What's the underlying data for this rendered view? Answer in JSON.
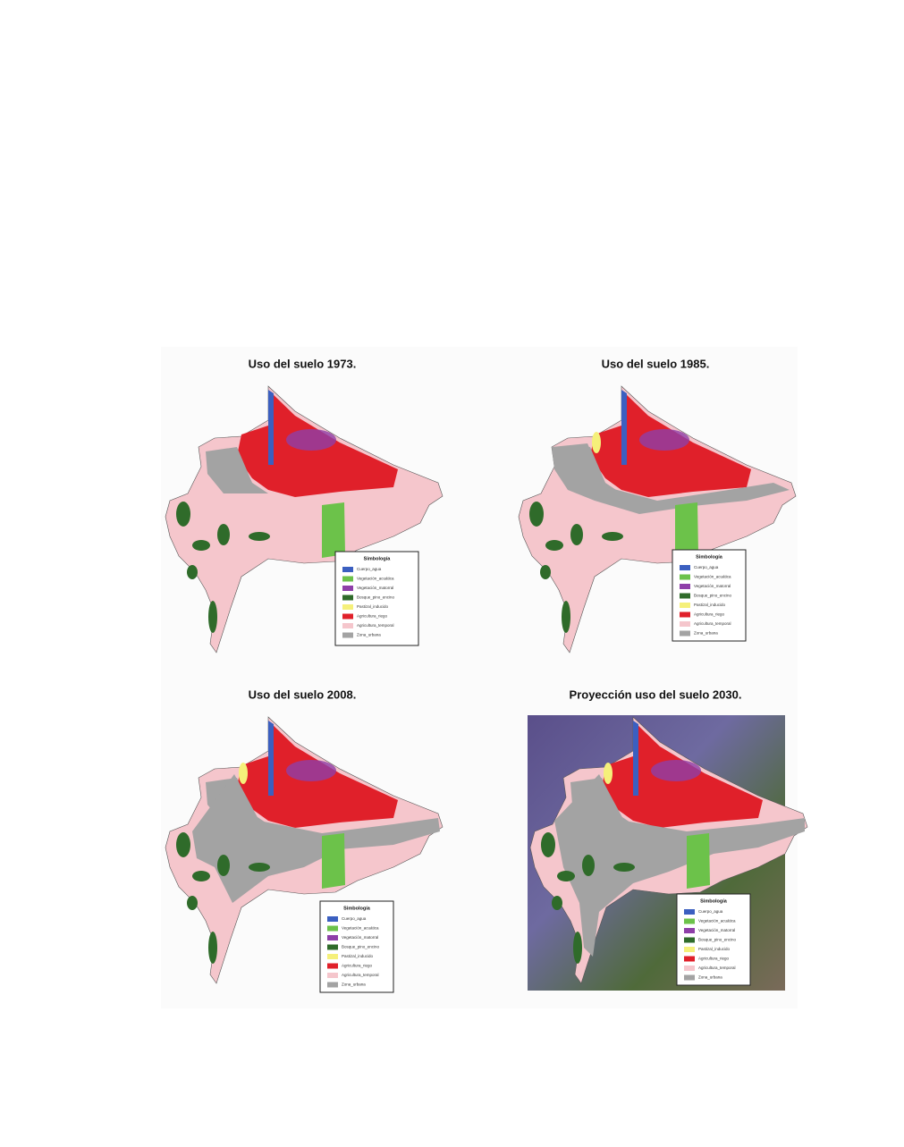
{
  "panels": [
    {
      "title": "Uso del suelo 1973."
    },
    {
      "title": "Uso del suelo 1985."
    },
    {
      "title": "Uso del suelo 2008."
    },
    {
      "title": "Proyección uso del suelo 2030."
    }
  ],
  "legend": {
    "title": "Simbología",
    "items": [
      {
        "label": "Cuerpo_agua",
        "color": "#3b5fc0"
      },
      {
        "label": "Vegetación_acuática",
        "color": "#6cc24a"
      },
      {
        "label": "Vegetación_matorral",
        "color": "#8e3fa8"
      },
      {
        "label": "Bosque_pino_encino",
        "color": "#2f6b2a"
      },
      {
        "label": "Pastizal_inducido",
        "color": "#f5f07a"
      },
      {
        "label": "Agricultura_riego",
        "color": "#e0202a"
      },
      {
        "label": "Agricultura_temporal",
        "color": "#f5c6cc"
      },
      {
        "label": "Zona_urbana",
        "color": "#a3a3a3"
      }
    ]
  }
}
